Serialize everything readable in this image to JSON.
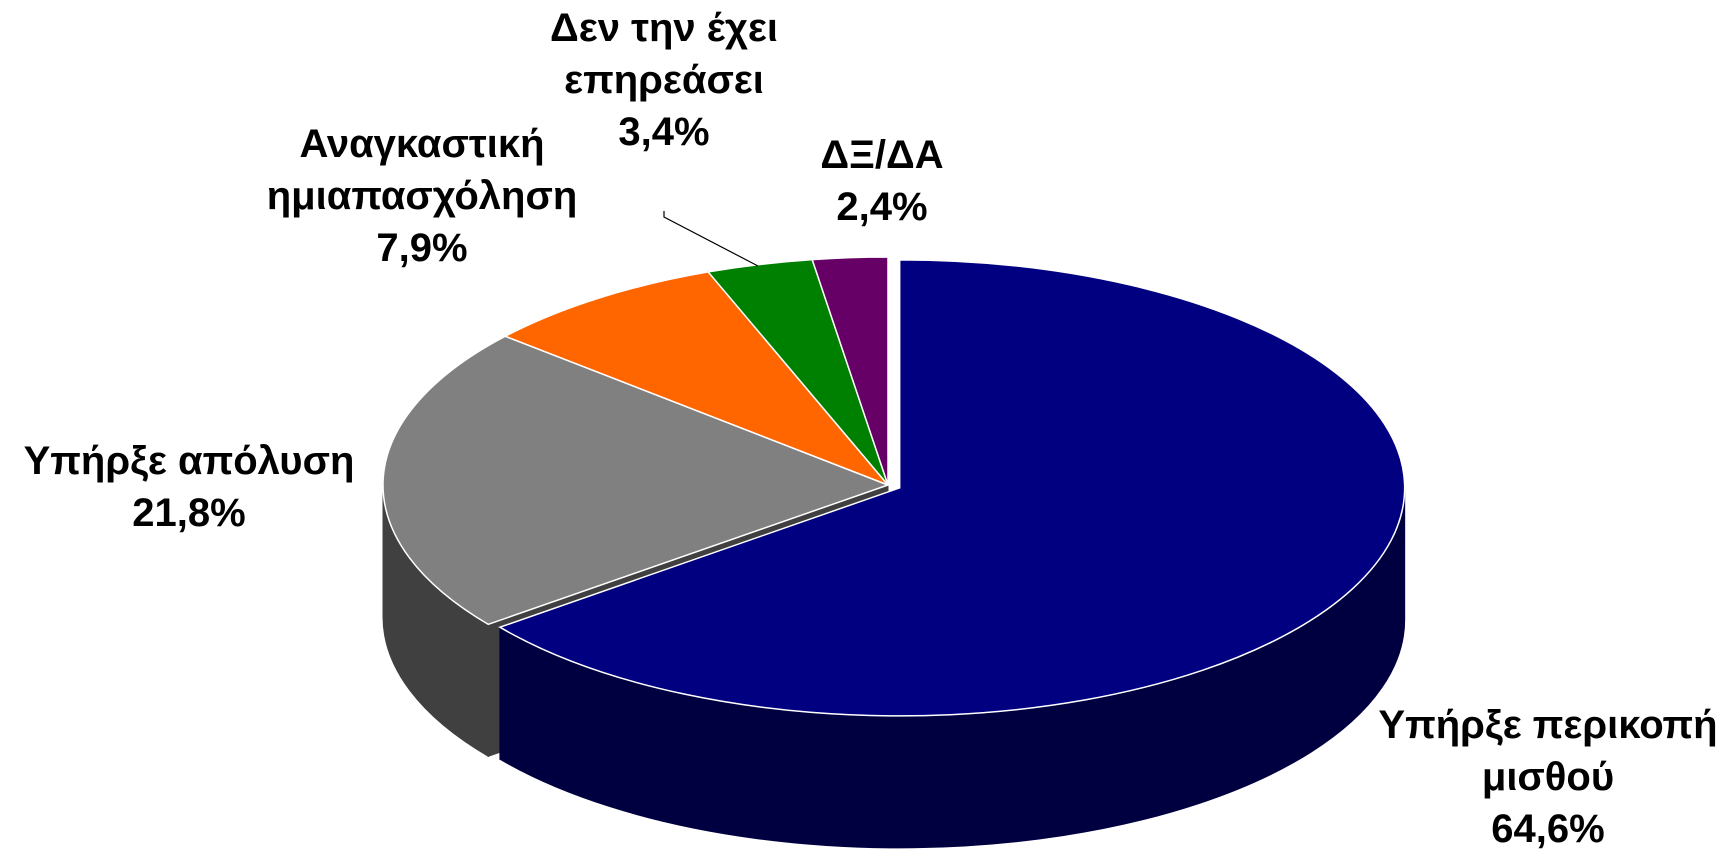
{
  "chart_data": {
    "type": "pie",
    "categories": [
      "Υπήρξε περικοπή μισθού",
      "Υπήρξε απόλυση",
      "Αναγκαστική ημιαπασχόληση",
      "Δεν την έχει επηρεάσει",
      "ΔΞ/ΔΑ"
    ],
    "values": [
      64.6,
      21.8,
      7.9,
      3.4,
      2.4
    ],
    "value_labels": [
      "64,6%",
      "21,8%",
      "7,9%",
      "3,4%",
      "2,4%"
    ],
    "colors": [
      "#000080",
      "#808080",
      "#ff6600",
      "#008000",
      "#660066"
    ]
  }
}
